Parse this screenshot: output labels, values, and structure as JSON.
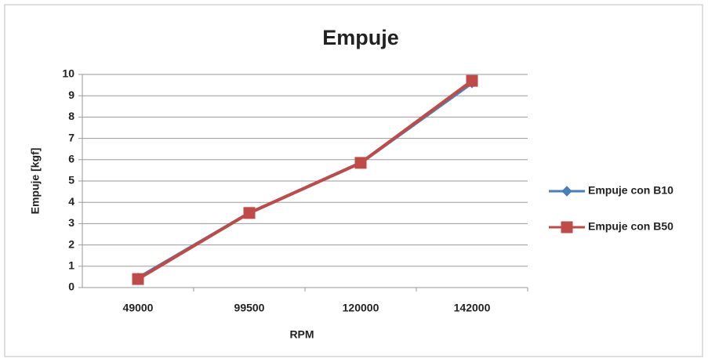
{
  "chart_data": {
    "type": "line",
    "title": "Empuje",
    "x_label": "RPM",
    "y_label": "Empuje [kgf]",
    "categories": [
      "49000",
      "99500",
      "120000",
      "142000"
    ],
    "series": [
      {
        "name": "Empuje con B10",
        "color": "#4a7ebb",
        "marker": "diamond",
        "values": [
          0.45,
          3.5,
          5.85,
          9.6
        ]
      },
      {
        "name": "Empuje con B50",
        "color": "#be4b48",
        "marker": "square",
        "values": [
          0.4,
          3.5,
          5.85,
          9.7
        ]
      }
    ],
    "ylim": [
      0,
      10
    ],
    "yticks": [
      0,
      1,
      2,
      3,
      4,
      5,
      6,
      7,
      8,
      9,
      10
    ],
    "grid": true,
    "legend": "right"
  }
}
